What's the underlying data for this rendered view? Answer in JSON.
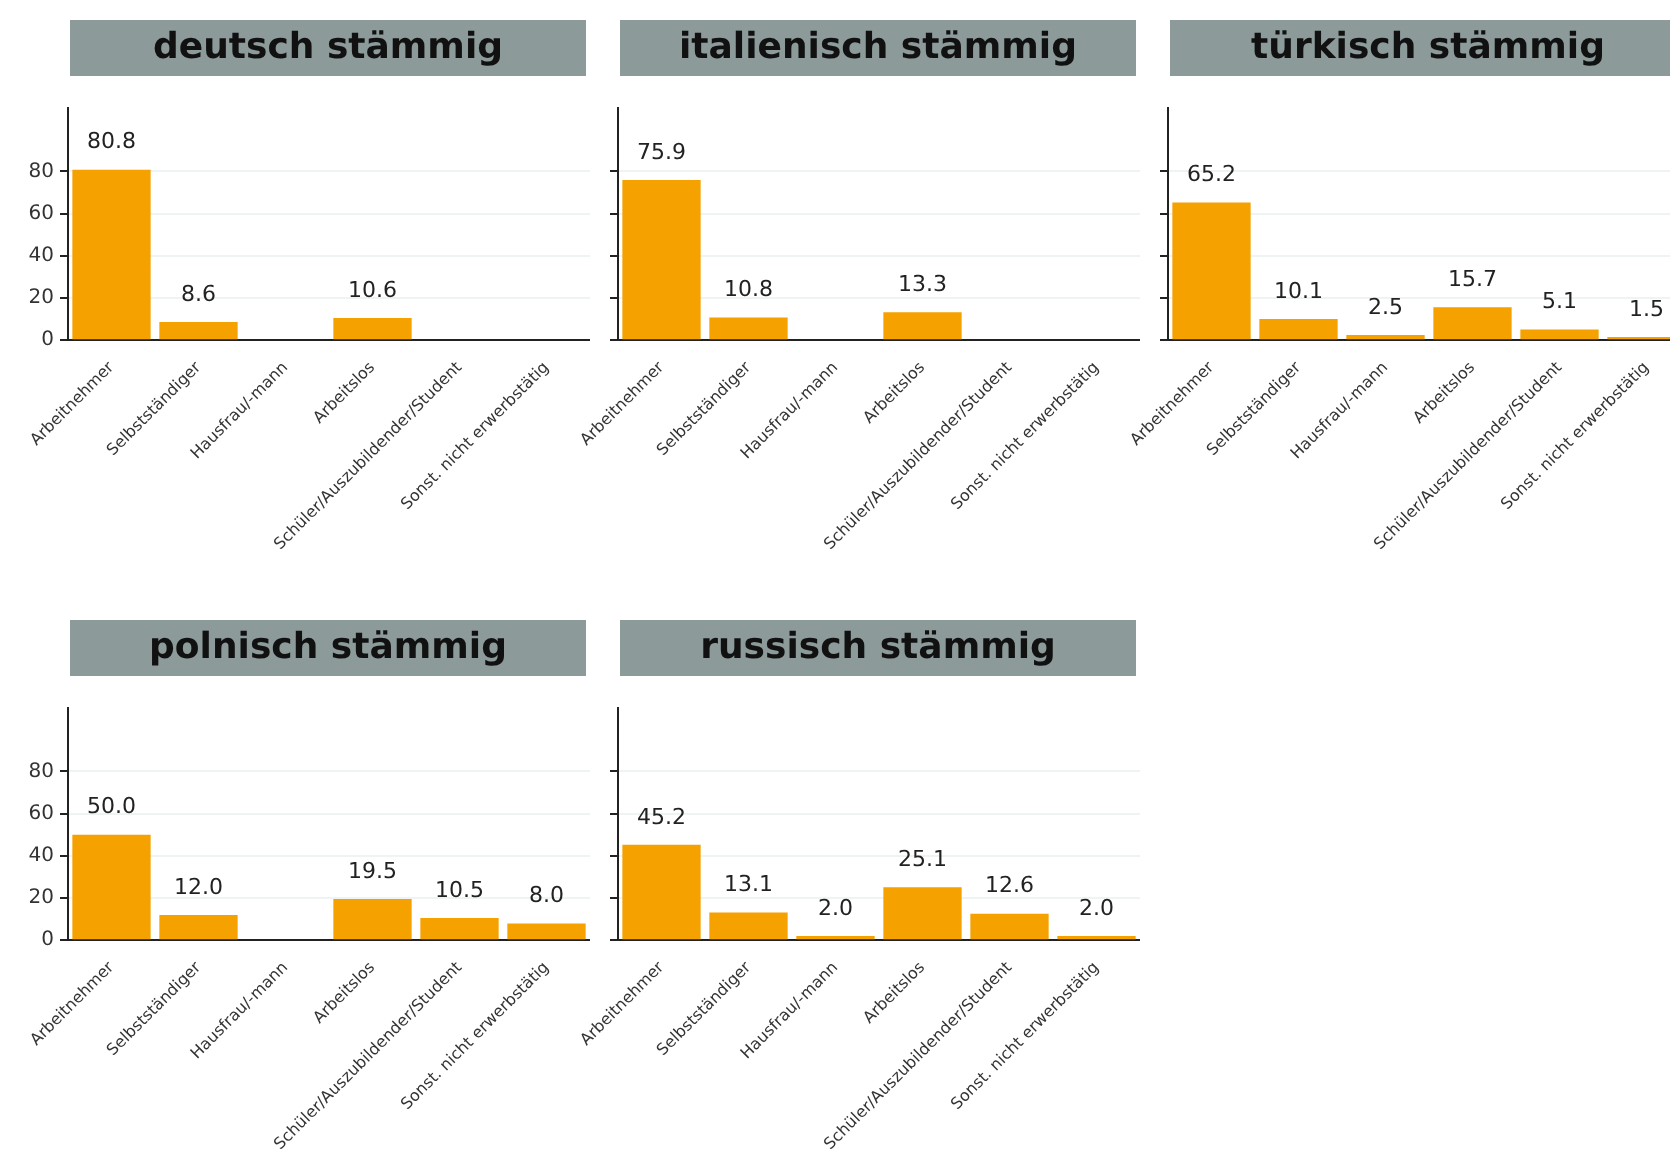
{
  "chart_data": [
    {
      "type": "bar",
      "title": "deutsch stämmig",
      "categories": [
        "Arbeitnehmer",
        "Selbstständiger",
        "Hausfrau/-mann",
        "Arbeitslos",
        "Schüler/Auszubildender/Student",
        "Sonst. nicht erwerbstätig"
      ],
      "values": [
        80.8,
        8.6,
        null,
        10.6,
        null,
        null
      ],
      "value_labels": [
        "80.8",
        "8.6",
        null,
        "10.6",
        null,
        null
      ],
      "color": "#f5a100",
      "ylim": [
        0,
        110
      ],
      "yticks": [
        0,
        20,
        40,
        60,
        80
      ],
      "grid": "y"
    },
    {
      "type": "bar",
      "title": "italienisch stämmig",
      "categories": [
        "Arbeitnehmer",
        "Selbstständiger",
        "Hausfrau/-mann",
        "Arbeitslos",
        "Schüler/Auszubildender/Student",
        "Sonst. nicht erwerbstätig"
      ],
      "values": [
        75.9,
        10.8,
        null,
        13.3,
        null,
        null
      ],
      "value_labels": [
        "75.9",
        "10.8",
        null,
        "13.3",
        null,
        null
      ],
      "color": "#f5a100",
      "ylim": [
        0,
        110
      ],
      "yticks": [
        0,
        20,
        40,
        60,
        80
      ],
      "grid": "y",
      "tick_labels": "x"
    },
    {
      "type": "bar",
      "title": "türkisch stämmig",
      "categories": [
        "Arbeitnehmer",
        "Selbstständiger",
        "Hausfrau/-mann",
        "Arbeitslos",
        "Schüler/Auszubildender/Student",
        "Sonst. nicht erwerbstätig"
      ],
      "values": [
        65.2,
        10.1,
        2.5,
        15.7,
        5.1,
        1.5
      ],
      "value_labels": [
        "65.2",
        "10.1",
        "2.5",
        "15.7",
        "5.1",
        "1.5"
      ],
      "color": "#f5a100",
      "ylim": [
        0,
        110
      ],
      "yticks": [
        0,
        20,
        40,
        60,
        80
      ],
      "grid": "y",
      "tick_labels": "x"
    },
    {
      "type": "bar",
      "title": "polnisch stämmig",
      "categories": [
        "Arbeitnehmer",
        "Selbstständiger",
        "Hausfrau/-mann",
        "Arbeitslos",
        "Schüler/Auszubildender/Student",
        "Sonst. nicht erwerbstätig"
      ],
      "values": [
        50.0,
        12.0,
        null,
        19.5,
        10.5,
        8.0
      ],
      "value_labels": [
        "50.0",
        "12.0",
        null,
        "19.5",
        "10.5",
        "8.0"
      ],
      "color": "#f5a100",
      "ylim": [
        0,
        110
      ],
      "yticks": [
        0,
        20,
        40,
        60,
        80
      ],
      "grid": "y"
    },
    {
      "type": "bar",
      "title": "russisch stämmig",
      "categories": [
        "Arbeitnehmer",
        "Selbstständiger",
        "Hausfrau/-mann",
        "Arbeitslos",
        "Schüler/Auszubildender/Student",
        "Sonst. nicht erwerbstätig"
      ],
      "values": [
        45.2,
        13.1,
        2.0,
        25.1,
        12.6,
        2.0
      ],
      "value_labels": [
        "45.2",
        "13.1",
        "2.0",
        "25.1",
        "12.6",
        "2.0"
      ],
      "color": "#f5a100",
      "ylim": [
        0,
        110
      ],
      "yticks": [
        0,
        20,
        40,
        60,
        80
      ],
      "grid": "y",
      "tick_labels": "x"
    }
  ]
}
